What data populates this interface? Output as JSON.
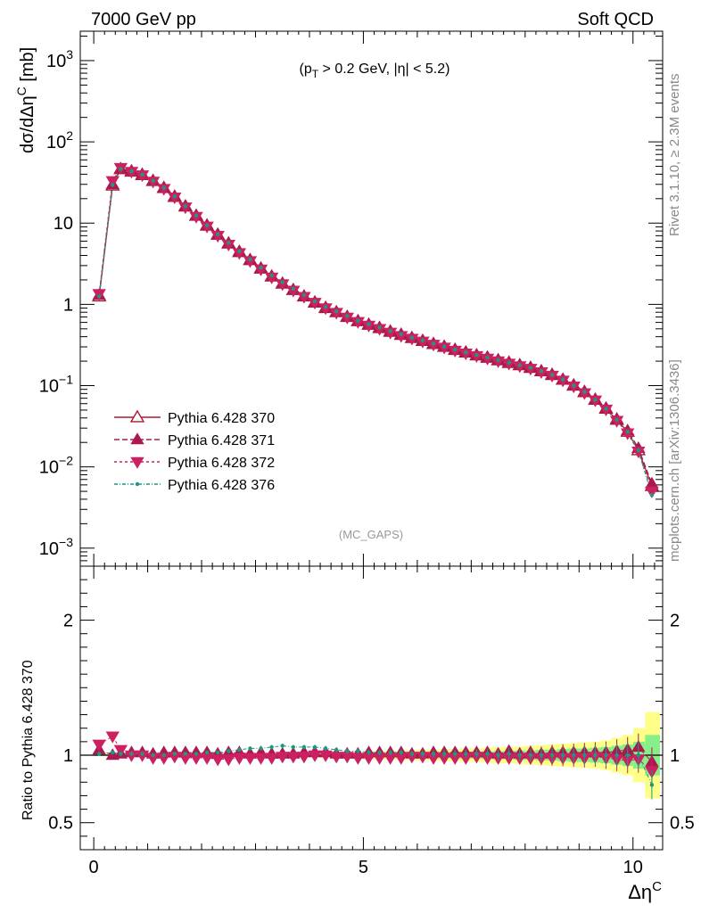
{
  "header": {
    "left": "7000 GeV pp",
    "right": "Soft QCD"
  },
  "side": {
    "rivet": "Rivet 3.1.10, ≥ 2.3M events",
    "mcplots": "mcplots.cern.ch [arXiv:1306.3436]"
  },
  "chart_data": [
    {
      "type": "line",
      "panel": "main",
      "ylabel_parts": {
        "main": "dσ/dΔη",
        "sup": "C",
        "unit": " [mb]"
      },
      "cut_parts": {
        "a": "(p",
        "sub": "T",
        "b": " > 0.2 GeV, |η| < 5.2)"
      },
      "watermark": "(MC_GAPS)",
      "yscale": "log",
      "ylim": [
        0.0006,
        2300
      ],
      "xlim": [
        -0.25,
        10.55
      ],
      "yticks_major": [
        {
          "v": 1000,
          "base": "10",
          "exp": "3"
        },
        {
          "v": 100,
          "base": "10",
          "exp": "2"
        },
        {
          "v": 10,
          "base": "10",
          "exp": ""
        },
        {
          "v": 1,
          "base": "1",
          "exp": ""
        },
        {
          "v": 0.1,
          "base": "10",
          "exp": "−1"
        },
        {
          "v": 0.01,
          "base": "10",
          "exp": "−2"
        },
        {
          "v": 0.001,
          "base": "10",
          "exp": "−3"
        }
      ],
      "legend_position": "lower-left",
      "x": [
        0.1,
        0.35,
        0.5,
        0.7,
        0.9,
        1.1,
        1.3,
        1.5,
        1.7,
        1.9,
        2.1,
        2.3,
        2.5,
        2.7,
        2.9,
        3.1,
        3.3,
        3.5,
        3.7,
        3.9,
        4.1,
        4.3,
        4.5,
        4.7,
        4.9,
        5.1,
        5.3,
        5.5,
        5.7,
        5.9,
        6.1,
        6.3,
        6.5,
        6.7,
        6.9,
        7.1,
        7.3,
        7.5,
        7.7,
        7.9,
        8.1,
        8.3,
        8.5,
        8.7,
        8.9,
        9.1,
        9.3,
        9.5,
        9.7,
        9.9,
        10.1,
        10.35
      ],
      "series": [
        {
          "name": "Pythia 6.428 370",
          "color": "#aa1a2e",
          "marker": "triangle-open",
          "dash": "",
          "values": [
            1.25,
            29,
            46,
            43,
            39,
            33,
            27,
            21,
            16,
            12.3,
            9.3,
            7.2,
            5.6,
            4.4,
            3.5,
            2.75,
            2.2,
            1.8,
            1.5,
            1.25,
            1.05,
            0.9,
            0.8,
            0.7,
            0.62,
            0.56,
            0.51,
            0.46,
            0.42,
            0.385,
            0.355,
            0.325,
            0.3,
            0.275,
            0.255,
            0.235,
            0.22,
            0.205,
            0.19,
            0.178,
            0.165,
            0.15,
            0.135,
            0.118,
            0.1,
            0.083,
            0.067,
            0.052,
            0.038,
            0.027,
            0.016,
            0.0058
          ]
        },
        {
          "name": "Pythia 6.428 371",
          "color": "#aa1a50",
          "marker": "triangle-up",
          "dash": "6,3",
          "values": [
            1.3,
            30,
            47,
            44,
            40,
            33.5,
            27.5,
            21.5,
            16.3,
            12.5,
            9.5,
            7.3,
            5.7,
            4.5,
            3.55,
            2.8,
            2.22,
            1.82,
            1.52,
            1.27,
            1.07,
            0.92,
            0.81,
            0.71,
            0.63,
            0.57,
            0.52,
            0.47,
            0.43,
            0.39,
            0.36,
            0.33,
            0.305,
            0.28,
            0.26,
            0.24,
            0.225,
            0.208,
            0.195,
            0.18,
            0.168,
            0.152,
            0.138,
            0.12,
            0.102,
            0.085,
            0.068,
            0.053,
            0.039,
            0.028,
            0.017,
            0.0062
          ]
        },
        {
          "name": "Pythia 6.428 372",
          "color": "#cc2060",
          "marker": "triangle-down",
          "dash": "3,3",
          "values": [
            1.35,
            33,
            48,
            43,
            39,
            32.5,
            26.5,
            20.8,
            15.7,
            12.0,
            9.1,
            7.0,
            5.45,
            4.3,
            3.42,
            2.7,
            2.15,
            1.78,
            1.48,
            1.24,
            1.05,
            0.9,
            0.79,
            0.69,
            0.61,
            0.55,
            0.5,
            0.45,
            0.41,
            0.38,
            0.35,
            0.32,
            0.295,
            0.27,
            0.25,
            0.232,
            0.216,
            0.2,
            0.187,
            0.174,
            0.162,
            0.147,
            0.133,
            0.116,
            0.098,
            0.081,
            0.066,
            0.051,
            0.037,
            0.026,
            0.0155,
            0.005
          ]
        },
        {
          "name": "Pythia 6.428 376",
          "color": "#1a9a80",
          "marker": "dot",
          "dash": "4,2,1,2",
          "values": [
            1.26,
            29.5,
            46.5,
            43.5,
            39.5,
            33.2,
            27.2,
            21.3,
            16.2,
            12.4,
            9.4,
            7.3,
            5.7,
            4.5,
            3.58,
            2.83,
            2.27,
            1.87,
            1.56,
            1.3,
            1.09,
            0.93,
            0.82,
            0.72,
            0.63,
            0.57,
            0.52,
            0.47,
            0.43,
            0.39,
            0.36,
            0.33,
            0.303,
            0.278,
            0.257,
            0.238,
            0.222,
            0.206,
            0.192,
            0.179,
            0.166,
            0.151,
            0.136,
            0.119,
            0.1,
            0.084,
            0.067,
            0.052,
            0.038,
            0.027,
            0.016,
            0.0045
          ]
        }
      ]
    },
    {
      "type": "line",
      "panel": "ratio",
      "ylabel": "Ratio to Pythia 6.428 370",
      "xlabel_parts": {
        "main": "Δη",
        "sup": "C"
      },
      "ylim": [
        0.3,
        2.4
      ],
      "xlim": [
        -0.25,
        10.55
      ],
      "xticks": [
        {
          "v": 0,
          "label": "0"
        },
        {
          "v": 5,
          "label": "5"
        },
        {
          "v": 10,
          "label": "10"
        }
      ],
      "yticks": [
        {
          "v": 0.5,
          "label": "0.5"
        },
        {
          "v": 1,
          "label": "1"
        },
        {
          "v": 2,
          "label": "2"
        }
      ],
      "band_inner": [
        0.005,
        0.005,
        0.005,
        0.005,
        0.005,
        0.005,
        0.005,
        0.005,
        0.005,
        0.005,
        0.005,
        0.005,
        0.005,
        0.005,
        0.005,
        0.005,
        0.005,
        0.005,
        0.005,
        0.005,
        0.01,
        0.01,
        0.01,
        0.012,
        0.015,
        0.015,
        0.017,
        0.018,
        0.02,
        0.02,
        0.02,
        0.022,
        0.022,
        0.025,
        0.025,
        0.025,
        0.028,
        0.03,
        0.03,
        0.035,
        0.035,
        0.04,
        0.04,
        0.045,
        0.05,
        0.05,
        0.055,
        0.06,
        0.07,
        0.08,
        0.1,
        0.15
      ],
      "band_outer": [
        0.008,
        0.008,
        0.008,
        0.008,
        0.008,
        0.008,
        0.008,
        0.008,
        0.008,
        0.008,
        0.008,
        0.008,
        0.008,
        0.008,
        0.008,
        0.008,
        0.008,
        0.008,
        0.008,
        0.01,
        0.015,
        0.02,
        0.02,
        0.025,
        0.028,
        0.03,
        0.032,
        0.035,
        0.035,
        0.04,
        0.04,
        0.042,
        0.045,
        0.045,
        0.05,
        0.05,
        0.055,
        0.06,
        0.06,
        0.065,
        0.07,
        0.075,
        0.08,
        0.085,
        0.09,
        0.095,
        0.1,
        0.11,
        0.13,
        0.15,
        0.2,
        0.32
      ],
      "series": [
        {
          "name": "Pythia 6.428 371",
          "color": "#aa1a50",
          "marker": "triangle-up",
          "dash": "6,3",
          "values": [
            1.04,
            1.0,
            1.01,
            1.02,
            1.02,
            1.01,
            1.02,
            1.02,
            1.02,
            1.02,
            1.02,
            1.01,
            1.02,
            1.02,
            1.01,
            1.02,
            1.01,
            1.01,
            1.01,
            1.02,
            1.02,
            1.02,
            1.01,
            1.01,
            1.01,
            1.02,
            1.02,
            1.02,
            1.02,
            1.01,
            1.01,
            1.02,
            1.02,
            1.02,
            1.02,
            1.02,
            1.02,
            1.01,
            1.03,
            1.01,
            1.02,
            1.01,
            1.02,
            1.02,
            1.02,
            1.02,
            1.02,
            1.02,
            1.03,
            1.04,
            1.06,
            0.95
          ]
        },
        {
          "name": "Pythia 6.428 372",
          "color": "#cc2060",
          "marker": "triangle-down",
          "dash": "3,3",
          "values": [
            1.08,
            1.14,
            1.04,
            1.0,
            1.0,
            0.98,
            0.98,
            0.99,
            0.98,
            0.98,
            0.98,
            0.97,
            0.97,
            0.98,
            0.98,
            0.98,
            0.98,
            0.99,
            0.99,
            0.99,
            1.0,
            1.0,
            0.99,
            0.99,
            0.98,
            0.98,
            0.98,
            0.98,
            0.98,
            0.99,
            0.99,
            0.98,
            0.98,
            0.98,
            0.98,
            0.99,
            0.98,
            0.98,
            0.98,
            0.98,
            0.98,
            0.98,
            0.98,
            0.98,
            0.98,
            0.98,
            0.99,
            0.98,
            0.97,
            0.96,
            0.97,
            0.88
          ]
        },
        {
          "name": "Pythia 6.428 376",
          "color": "#1a9a80",
          "marker": "dot",
          "dash": "4,2,1,2",
          "values": [
            1.01,
            1.02,
            1.01,
            1.01,
            1.01,
            1.0,
            1.0,
            1.01,
            1.01,
            1.01,
            1.02,
            1.02,
            1.03,
            1.04,
            1.05,
            1.05,
            1.06,
            1.07,
            1.06,
            1.06,
            1.06,
            1.05,
            1.04,
            1.03,
            1.03,
            1.02,
            1.02,
            1.02,
            1.02,
            1.01,
            1.01,
            1.01,
            1.01,
            1.01,
            1.01,
            1.01,
            1.01,
            1.0,
            1.01,
            1.0,
            1.0,
            1.0,
            1.0,
            1.0,
            1.0,
            1.0,
            1.0,
            1.0,
            1.0,
            1.0,
            1.0,
            0.78
          ]
        }
      ]
    }
  ]
}
